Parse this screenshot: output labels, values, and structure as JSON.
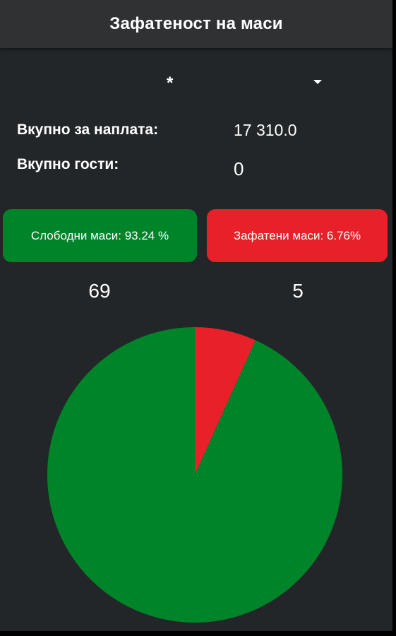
{
  "app": {
    "title": "Зафатеност на маси"
  },
  "filter": {
    "selected": "*"
  },
  "totals": {
    "payment_label": "Вкупно за наплата:",
    "payment_value": "17 310.0",
    "guests_label": "Вкупно гости:",
    "guests_value": "0"
  },
  "status": {
    "free_label": "Слободни маси: 93.24 %",
    "busy_label": "Зафатени маси: 6.76%",
    "free_count": "69",
    "busy_count": "5"
  },
  "colors": {
    "free": "#00842a",
    "busy": "#e8202a"
  },
  "chart_data": {
    "type": "pie",
    "slices": [
      {
        "value": 5,
        "percent": 6.76,
        "color": "#e8202a"
      },
      {
        "value": 69,
        "percent": 93.24,
        "color": "#00842a"
      }
    ]
  }
}
